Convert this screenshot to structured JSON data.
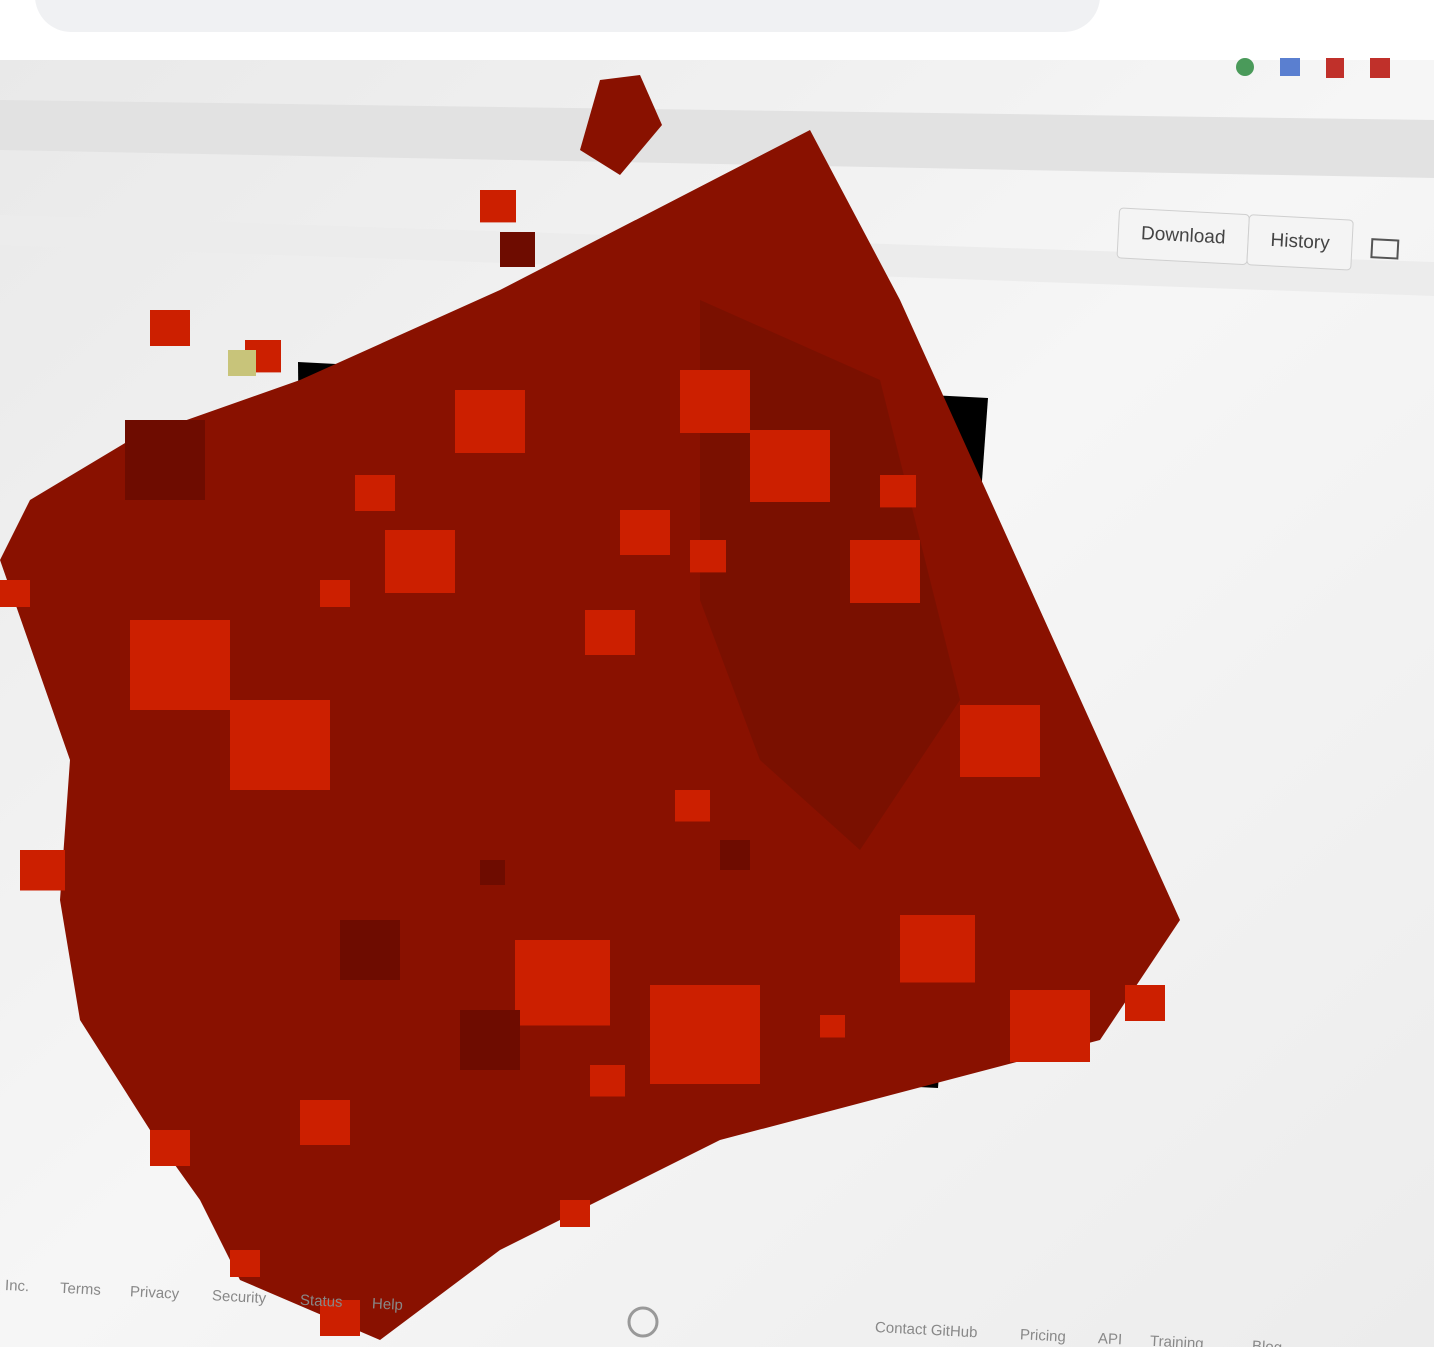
{
  "toolbar": {
    "buttons": [
      "Download",
      "History"
    ]
  },
  "footer": {
    "left": [
      "Inc.",
      "Terms",
      "Privacy",
      "Security",
      "Status",
      "Help"
    ],
    "right": [
      "Contact GitHub",
      "Pricing",
      "API",
      "Training",
      "Blog"
    ]
  }
}
